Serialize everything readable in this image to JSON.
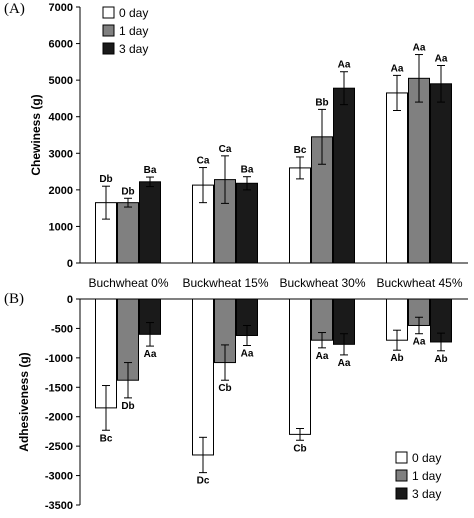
{
  "chart_data": [
    {
      "panel": "(A)",
      "type": "bar",
      "ylabel": "Chewiness (g)",
      "ylim": [
        0,
        7000
      ],
      "yticks": [
        "0",
        "1000",
        "2000",
        "3000",
        "4000",
        "5000",
        "6000",
        "7000"
      ],
      "categories": [
        "Buchwheat 0%",
        "Buckwheat 15%",
        "Buckwheat 30%",
        "Buckwheat 45%"
      ],
      "legend": "top-left",
      "series": [
        {
          "name": "0 day",
          "color": "#ffffff",
          "values": [
            1650,
            2130,
            2600,
            4650
          ],
          "errors": [
            450,
            480,
            300,
            480
          ],
          "labels": [
            "Db",
            "Ca",
            "Bc",
            "Aa"
          ]
        },
        {
          "name": "1 day",
          "color": "#808080",
          "values": [
            1650,
            2280,
            3450,
            5050
          ],
          "errors": [
            120,
            650,
            750,
            650
          ],
          "labels": [
            "Db",
            "Ca",
            "Bb",
            "Aa"
          ]
        },
        {
          "name": "3 day",
          "color": "#1a1a1a",
          "values": [
            2220,
            2180,
            4780,
            4900
          ],
          "errors": [
            130,
            180,
            450,
            500
          ],
          "labels": [
            "Ba",
            "Ba",
            "Aa",
            "Aa"
          ]
        }
      ]
    },
    {
      "panel": "(B)",
      "type": "bar",
      "ylabel": "Adhesiveness (g)",
      "ylim": [
        -3500,
        0
      ],
      "yticks": [
        "0",
        "-500",
        "-1000",
        "-1500",
        "-2000",
        "-2500",
        "-3000",
        "-3500"
      ],
      "categories": [
        "Buchwheat 0%",
        "Buckwheat 15%",
        "Buckwheat 30%",
        "Buckwheat 45%"
      ],
      "legend": "bottom-right",
      "series": [
        {
          "name": "0 day",
          "color": "#ffffff",
          "values": [
            -1850,
            -2650,
            -2300,
            -700
          ],
          "errors": [
            380,
            300,
            100,
            170
          ],
          "labels": [
            "Bc",
            "Dc",
            "Cb",
            "Ab"
          ]
        },
        {
          "name": "1 day",
          "color": "#808080",
          "values": [
            -1380,
            -1080,
            -700,
            -450
          ],
          "errors": [
            300,
            300,
            130,
            140
          ],
          "labels": [
            "Db",
            "Cb",
            "Aa",
            "Aa"
          ]
        },
        {
          "name": "3 day",
          "color": "#1a1a1a",
          "values": [
            -600,
            -620,
            -770,
            -730
          ],
          "errors": [
            200,
            170,
            180,
            150
          ],
          "labels": [
            "Aa",
            "Aa",
            "Aa",
            "Ab"
          ]
        }
      ]
    }
  ]
}
